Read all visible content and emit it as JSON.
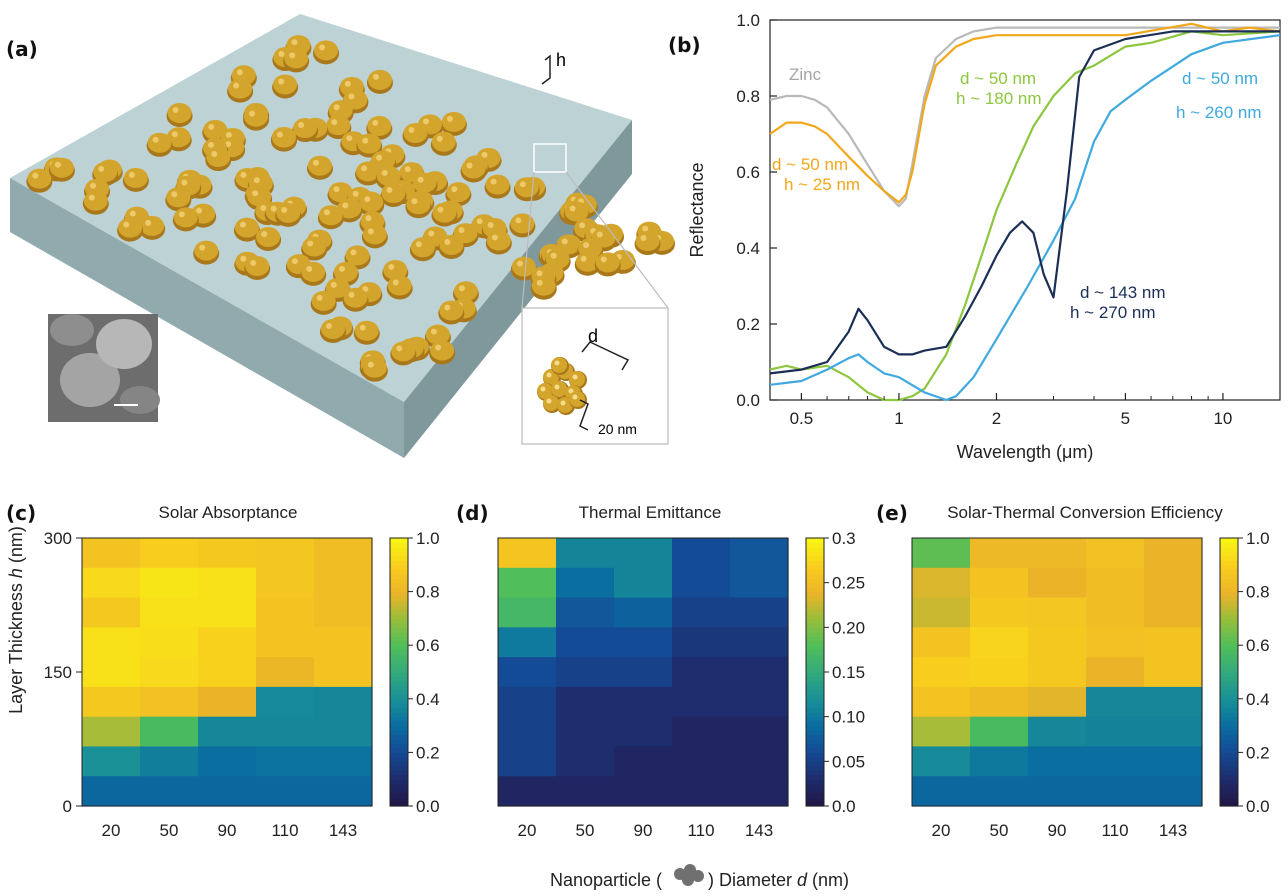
{
  "figure": {
    "xlabel_prefix": "Nanoparticle (",
    "xlabel_suffix": ") Diameter ",
    "xlabel_var": "d",
    "xlabel_unit": " (nm)"
  },
  "panel_a": {
    "label": "(a)",
    "h_label": "h",
    "d_label": "d",
    "scale_label": "20 nm",
    "colors": {
      "substrate_top": "#b8cfd1",
      "substrate_side": "#8fa9ac",
      "particle": "#d4a52c",
      "particle_dark": "#a9781b"
    }
  },
  "panel_b": {
    "label": "(b)",
    "annotations": {
      "zinc": "Zinc",
      "gold_d": "d ~ 50 nm",
      "gold_h": "h ~ 25 nm",
      "green_d": "d ~ 50 nm",
      "green_h": "h ~ 180 nm",
      "light_blue_d": "d ~ 50 nm",
      "light_blue_h": "h ~ 260 nm",
      "navy_d": "d ~ 143 nm",
      "navy_h": "h ~ 270 nm"
    }
  },
  "chart_data": [
    {
      "type": "line",
      "xlabel": "Wavelength (μm)",
      "ylabel": "Reflectance",
      "xscale": "log",
      "xlim": [
        0.4,
        15
      ],
      "ylim": [
        0,
        1.0
      ],
      "xticks": [
        "0.5",
        "1",
        "2",
        "5",
        "10"
      ],
      "xtick_values": [
        0.5,
        1,
        2,
        5,
        10
      ],
      "yticks": [
        "0.0",
        "0.2",
        "0.4",
        "0.6",
        "0.8",
        "1.0"
      ],
      "ytick_values": [
        0,
        0.2,
        0.4,
        0.6,
        0.8,
        1.0
      ],
      "grid": false,
      "series": [
        {
          "id": "zinc",
          "color": "#b9b9b9",
          "x": [
            0.4,
            0.45,
            0.5,
            0.55,
            0.6,
            0.7,
            0.8,
            0.9,
            1.0,
            1.05,
            1.1,
            1.2,
            1.3,
            1.5,
            1.7,
            2,
            3,
            5,
            8,
            10,
            12,
            15
          ],
          "y": [
            0.79,
            0.8,
            0.8,
            0.79,
            0.77,
            0.7,
            0.62,
            0.55,
            0.51,
            0.53,
            0.62,
            0.8,
            0.9,
            0.95,
            0.97,
            0.98,
            0.98,
            0.98,
            0.98,
            0.98,
            0.98,
            0.98
          ]
        },
        {
          "id": "gold",
          "color": "#f2a71b",
          "x": [
            0.4,
            0.45,
            0.5,
            0.55,
            0.6,
            0.7,
            0.8,
            0.9,
            1.0,
            1.05,
            1.1,
            1.2,
            1.3,
            1.5,
            1.7,
            2,
            3,
            5,
            8,
            10,
            12,
            15
          ],
          "y": [
            0.7,
            0.73,
            0.73,
            0.72,
            0.7,
            0.64,
            0.59,
            0.55,
            0.52,
            0.54,
            0.6,
            0.78,
            0.88,
            0.93,
            0.95,
            0.96,
            0.96,
            0.96,
            0.99,
            0.97,
            0.98,
            0.97
          ]
        },
        {
          "id": "green",
          "color": "#8dc63f",
          "x": [
            0.4,
            0.45,
            0.5,
            0.6,
            0.7,
            0.8,
            0.9,
            1.0,
            1.1,
            1.2,
            1.4,
            1.6,
            1.8,
            2.0,
            2.3,
            2.6,
            3.0,
            3.5,
            4.0,
            5,
            6,
            8,
            10,
            15
          ],
          "y": [
            0.08,
            0.09,
            0.08,
            0.09,
            0.06,
            0.02,
            0.0,
            0.0,
            0.01,
            0.03,
            0.12,
            0.25,
            0.38,
            0.5,
            0.62,
            0.72,
            0.8,
            0.86,
            0.88,
            0.93,
            0.94,
            0.97,
            0.96,
            0.97
          ]
        },
        {
          "id": "light_blue",
          "color": "#3fa9e0",
          "x": [
            0.4,
            0.5,
            0.6,
            0.7,
            0.75,
            0.8,
            0.9,
            1.0,
            1.2,
            1.4,
            1.5,
            1.7,
            2.0,
            2.5,
            3.0,
            3.5,
            4.0,
            4.5,
            5.0,
            6,
            8,
            10,
            15
          ],
          "y": [
            0.04,
            0.05,
            0.08,
            0.11,
            0.12,
            0.1,
            0.07,
            0.06,
            0.02,
            0.0,
            0.01,
            0.06,
            0.16,
            0.3,
            0.42,
            0.53,
            0.68,
            0.76,
            0.79,
            0.84,
            0.91,
            0.94,
            0.96
          ]
        },
        {
          "id": "navy",
          "color": "#1b2f56",
          "x": [
            0.4,
            0.5,
            0.6,
            0.7,
            0.75,
            0.8,
            0.9,
            1.0,
            1.1,
            1.2,
            1.4,
            1.6,
            1.8,
            2.0,
            2.2,
            2.4,
            2.6,
            2.8,
            3.0,
            3.3,
            3.6,
            4.0,
            5,
            7,
            10,
            15
          ],
          "y": [
            0.07,
            0.08,
            0.1,
            0.18,
            0.24,
            0.21,
            0.14,
            0.12,
            0.12,
            0.13,
            0.14,
            0.22,
            0.3,
            0.38,
            0.44,
            0.47,
            0.44,
            0.33,
            0.27,
            0.55,
            0.85,
            0.92,
            0.95,
            0.97,
            0.97,
            0.97
          ]
        }
      ]
    },
    {
      "type": "heatmap",
      "panel_label": "(c)",
      "title": "Solar Absorptance",
      "ylabel_prefix": "Layer Thickness ",
      "ylabel_var": "h",
      "ylabel_unit": " (nm)",
      "x_categories": [
        "20",
        "50",
        "90",
        "110",
        "143"
      ],
      "yticks": [
        "0",
        "150",
        "300"
      ],
      "colorbar_ticks": [
        "0.0",
        "0.2",
        "0.4",
        "0.6",
        "0.8",
        "1.0"
      ],
      "vmin": 0,
      "vmax": 1.0,
      "values": [
        [
          0.86,
          0.9,
          0.88,
          0.87,
          0.84
        ],
        [
          0.93,
          0.96,
          0.95,
          0.87,
          0.84
        ],
        [
          0.88,
          0.95,
          0.95,
          0.86,
          0.84
        ],
        [
          0.95,
          0.94,
          0.91,
          0.86,
          0.86
        ],
        [
          0.95,
          0.93,
          0.91,
          0.81,
          0.86
        ],
        [
          0.88,
          0.85,
          0.8,
          0.38,
          0.37
        ],
        [
          0.72,
          0.58,
          0.37,
          0.37,
          0.37
        ],
        [
          0.4,
          0.35,
          0.3,
          0.31,
          0.31
        ],
        [
          0.28,
          0.28,
          0.28,
          0.28,
          0.28
        ]
      ]
    },
    {
      "type": "heatmap",
      "panel_label": "(d)",
      "title": "Thermal Emittance",
      "x_categories": [
        "20",
        "50",
        "90",
        "110",
        "143"
      ],
      "colorbar_ticks": [
        "0.0",
        "0.05",
        "0.10",
        "0.15",
        "0.20",
        "0.25",
        "0.3"
      ],
      "vmin": 0,
      "vmax": 0.3,
      "values": [
        [
          0.26,
          0.11,
          0.11,
          0.06,
          0.07
        ],
        [
          0.18,
          0.09,
          0.11,
          0.06,
          0.07
        ],
        [
          0.17,
          0.07,
          0.08,
          0.05,
          0.05
        ],
        [
          0.1,
          0.06,
          0.06,
          0.04,
          0.04
        ],
        [
          0.06,
          0.05,
          0.05,
          0.03,
          0.03
        ],
        [
          0.05,
          0.03,
          0.03,
          0.03,
          0.03
        ],
        [
          0.05,
          0.03,
          0.03,
          0.02,
          0.02
        ],
        [
          0.05,
          0.03,
          0.02,
          0.02,
          0.02
        ],
        [
          0.02,
          0.02,
          0.02,
          0.02,
          0.02
        ]
      ]
    },
    {
      "type": "heatmap",
      "panel_label": "(e)",
      "title": "Solar-Thermal Conversion Efficiency",
      "x_categories": [
        "20",
        "50",
        "90",
        "110",
        "143"
      ],
      "colorbar_ticks": [
        "0.0",
        "0.2",
        "0.4",
        "0.6",
        "0.8",
        "1.0"
      ],
      "vmin": 0,
      "vmax": 1.0,
      "values": [
        [
          0.62,
          0.82,
          0.82,
          0.85,
          0.8
        ],
        [
          0.78,
          0.86,
          0.8,
          0.84,
          0.8
        ],
        [
          0.76,
          0.88,
          0.87,
          0.84,
          0.8
        ],
        [
          0.86,
          0.92,
          0.88,
          0.85,
          0.86
        ],
        [
          0.9,
          0.91,
          0.88,
          0.8,
          0.86
        ],
        [
          0.86,
          0.83,
          0.79,
          0.37,
          0.37
        ],
        [
          0.72,
          0.58,
          0.37,
          0.36,
          0.36
        ],
        [
          0.38,
          0.33,
          0.3,
          0.3,
          0.3
        ],
        [
          0.28,
          0.28,
          0.28,
          0.28,
          0.28
        ]
      ]
    }
  ]
}
